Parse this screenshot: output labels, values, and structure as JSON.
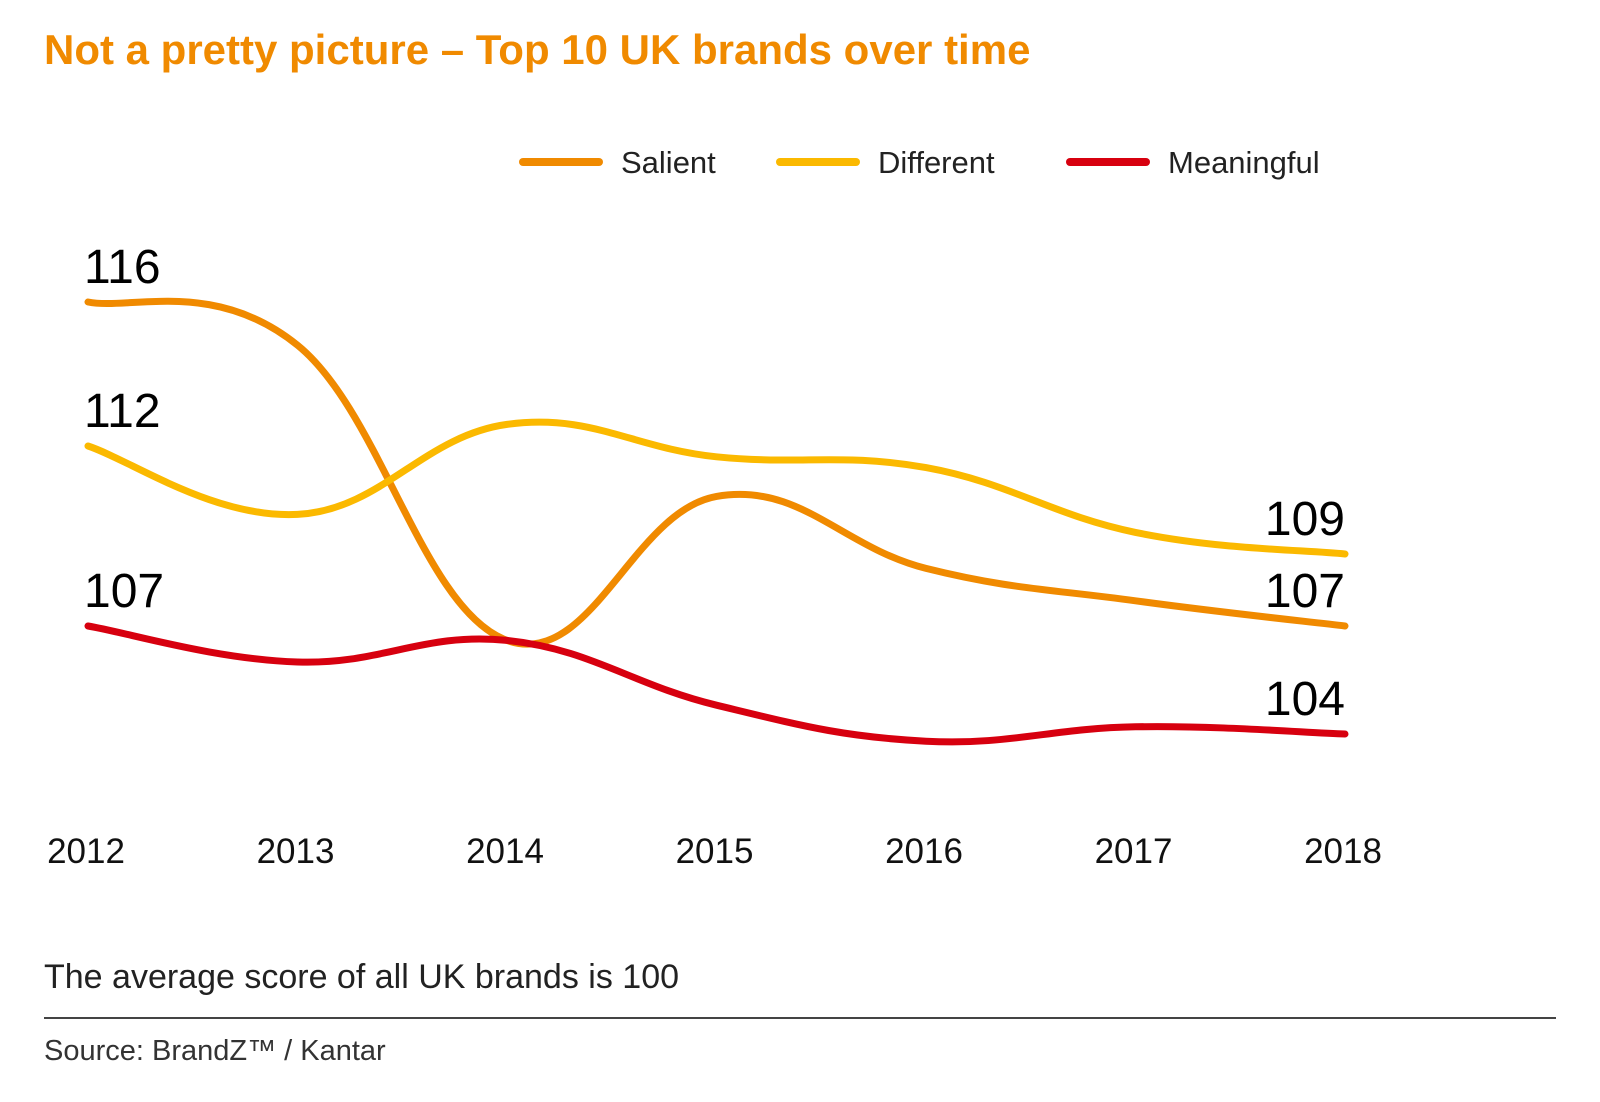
{
  "title": "Not a pretty picture – Top 10 UK brands over time",
  "note": "The average score of all UK brands is 100",
  "source": "Source: BrandZ™ / Kantar",
  "chart_data": {
    "type": "line",
    "title": "Not a pretty picture – Top 10 UK brands over time",
    "x": [
      "2012",
      "2013",
      "2014",
      "2015",
      "2016",
      "2017",
      "2018"
    ],
    "series": [
      {
        "name": "Salient",
        "color": "#f08a00",
        "values": [
          116,
          114.8,
          106.6,
          110.6,
          108.6,
          107.7,
          107
        ]
      },
      {
        "name": "Different",
        "color": "#fbb900",
        "values": [
          112,
          110.1,
          112.6,
          111.7,
          111.4,
          109.6,
          109
        ]
      },
      {
        "name": "Meaningful",
        "color": "#d7000f",
        "values": [
          107,
          106,
          106.6,
          104.8,
          103.8,
          104.2,
          104
        ]
      }
    ],
    "data_labels": [
      {
        "series": "Salient",
        "x": "2012",
        "text": "116"
      },
      {
        "series": "Different",
        "x": "2012",
        "text": "112"
      },
      {
        "series": "Meaningful",
        "x": "2012",
        "text": "107"
      },
      {
        "series": "Different",
        "x": "2018",
        "text": "109"
      },
      {
        "series": "Salient",
        "x": "2018",
        "text": "107"
      },
      {
        "series": "Meaningful",
        "x": "2018",
        "text": "104"
      }
    ],
    "ylim": [
      103,
      117
    ],
    "grid": false,
    "legend_position": "top-right"
  }
}
